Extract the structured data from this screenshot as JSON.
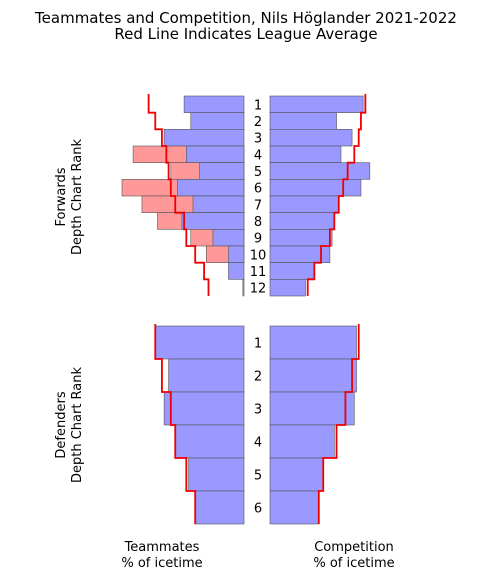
{
  "chart_data": {
    "type": "bar",
    "title_lines": [
      "Teammates and Competition, Nils Höglander 2021-2022",
      "Red Line Indicates League Average"
    ],
    "xlabel_left": [
      "Teammates",
      "% of icetime"
    ],
    "xlabel_right": [
      "Competition",
      "% of icetime"
    ],
    "bar_color": "#9999ff",
    "excess_color": "#ff9999",
    "avg_line_color": "#ee0000",
    "edge_color": "#555555",
    "panels": [
      {
        "name": "forwards",
        "ylabel": [
          "Forwards",
          "Depth Chart Rank"
        ],
        "categories": [
          "1",
          "2",
          "3",
          "4",
          "5",
          "6",
          "7",
          "8",
          "9",
          "10",
          "11",
          "12"
        ],
        "xlim": [
          0,
          0.55
        ],
        "teammates": [
          0.27,
          0.24,
          0.36,
          0.26,
          0.2,
          0.3,
          0.23,
          0.28,
          0.14,
          0.07,
          0.07,
          0.005
        ],
        "teammates_excess": [
          0.0,
          0.0,
          0.0,
          0.5,
          0.33,
          0.55,
          0.46,
          0.39,
          0.24,
          0.17,
          0.0,
          0.0
        ],
        "teammates_avg": [
          0.43,
          0.4,
          0.37,
          0.35,
          0.34,
          0.33,
          0.31,
          0.27,
          0.26,
          0.22,
          0.18,
          0.16
        ],
        "competition": [
          0.42,
          0.3,
          0.37,
          0.32,
          0.45,
          0.41,
          0.31,
          0.29,
          0.28,
          0.27,
          0.2,
          0.16
        ],
        "competition_avg": [
          0.43,
          0.41,
          0.4,
          0.38,
          0.35,
          0.33,
          0.31,
          0.29,
          0.27,
          0.23,
          0.2,
          0.17
        ]
      },
      {
        "name": "defenders",
        "ylabel": [
          "Defenders",
          "Depth Chart Rank"
        ],
        "categories": [
          "1",
          "2",
          "3",
          "4",
          "5",
          "6"
        ],
        "xlim": [
          0,
          0.55
        ],
        "teammates": [
          0.4,
          0.34,
          0.36,
          0.31,
          0.25,
          0.22
        ],
        "teammates_excess": [
          0.0,
          0.0,
          0.0,
          0.0,
          0.0,
          0.0
        ],
        "teammates_avg": [
          0.4,
          0.37,
          0.33,
          0.31,
          0.26,
          0.22
        ],
        "competition": [
          0.39,
          0.39,
          0.38,
          0.29,
          0.24,
          0.22
        ],
        "competition_avg": [
          0.4,
          0.37,
          0.34,
          0.3,
          0.24,
          0.22
        ]
      }
    ]
  }
}
